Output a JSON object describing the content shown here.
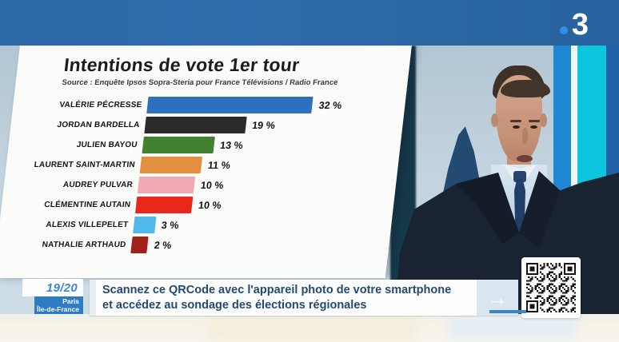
{
  "channel": {
    "logo_digit": "3"
  },
  "chart_data": {
    "type": "bar",
    "orientation": "horizontal",
    "title": "Intentions de vote 1er tour",
    "source": "Source : Enquête Ipsos Sopra-Steria pour France Télévisions / Radio France",
    "unit": "%",
    "xlim": [
      0,
      35
    ],
    "legend": false,
    "categories": [
      "VALÉRIE PÉCRESSE",
      "JORDAN BARDELLA",
      "JULIEN BAYOU",
      "LAURENT SAINT-MARTIN",
      "AUDREY PULVAR",
      "CLÉMENTINE AUTAIN",
      "ALEXIS VILLEPELET",
      "NATHALIE ARTHAUD"
    ],
    "values": [
      32,
      19,
      13,
      11,
      10,
      10,
      3,
      2
    ],
    "value_labels": [
      "32 %",
      "19 %",
      "13 %",
      "11 %",
      "10 %",
      "10 %",
      "3 %",
      "2 %"
    ],
    "bar_colors": [
      "#2e6fc0",
      "#2d2a2a",
      "#41812f",
      "#e2903f",
      "#f0a9b2",
      "#e7281b",
      "#4fb9ee",
      "#a1211a"
    ]
  },
  "program_badge": {
    "program": "19/20",
    "region_line1": "Paris",
    "region_line2": "Île-de-France"
  },
  "banner": {
    "line1": "Scannez ce QRCode avec l'appareil photo de votre smartphone",
    "line2": "et accédez au sondage des élections régionales",
    "arrow_icon": "→"
  }
}
